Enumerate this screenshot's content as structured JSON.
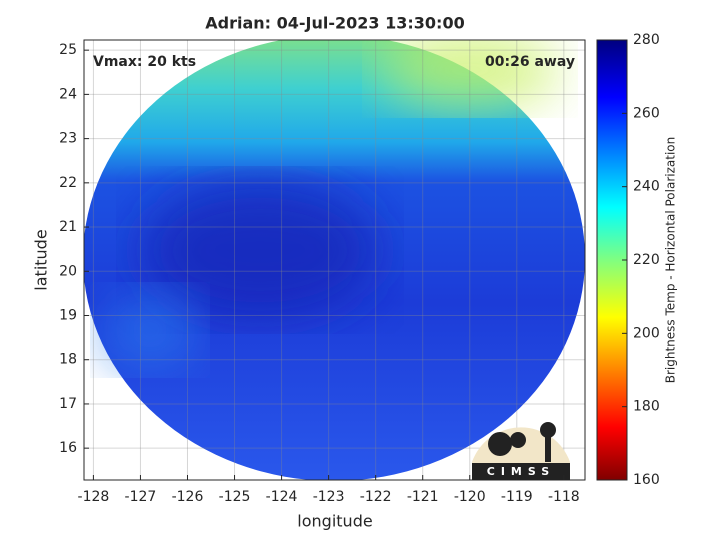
{
  "chart_data": {
    "type": "image",
    "title": "Adrian: 04-Jul-2023 13:30:00",
    "xlabel": "longitude",
    "ylabel": "latitude",
    "xlim": [
      -128.2,
      -117.55
    ],
    "xticks": [
      -128,
      -127,
      -126,
      -125,
      -124,
      -123,
      -122,
      -121,
      -120,
      -119,
      -118
    ],
    "ylim": [
      15.28,
      25.23
    ],
    "yticks": [
      16,
      17,
      18,
      19,
      20,
      21,
      22,
      23,
      24,
      25
    ],
    "grid": true,
    "annotations": [
      "Vmax: 20 kts",
      "00:26 away"
    ],
    "colorbar": {
      "label": "Brightness Temp - Horizontal Polarization",
      "lim": [
        160,
        280
      ],
      "ticks": [
        160,
        180,
        200,
        220,
        240,
        260,
        280
      ]
    }
  },
  "logo": "CIMSS"
}
